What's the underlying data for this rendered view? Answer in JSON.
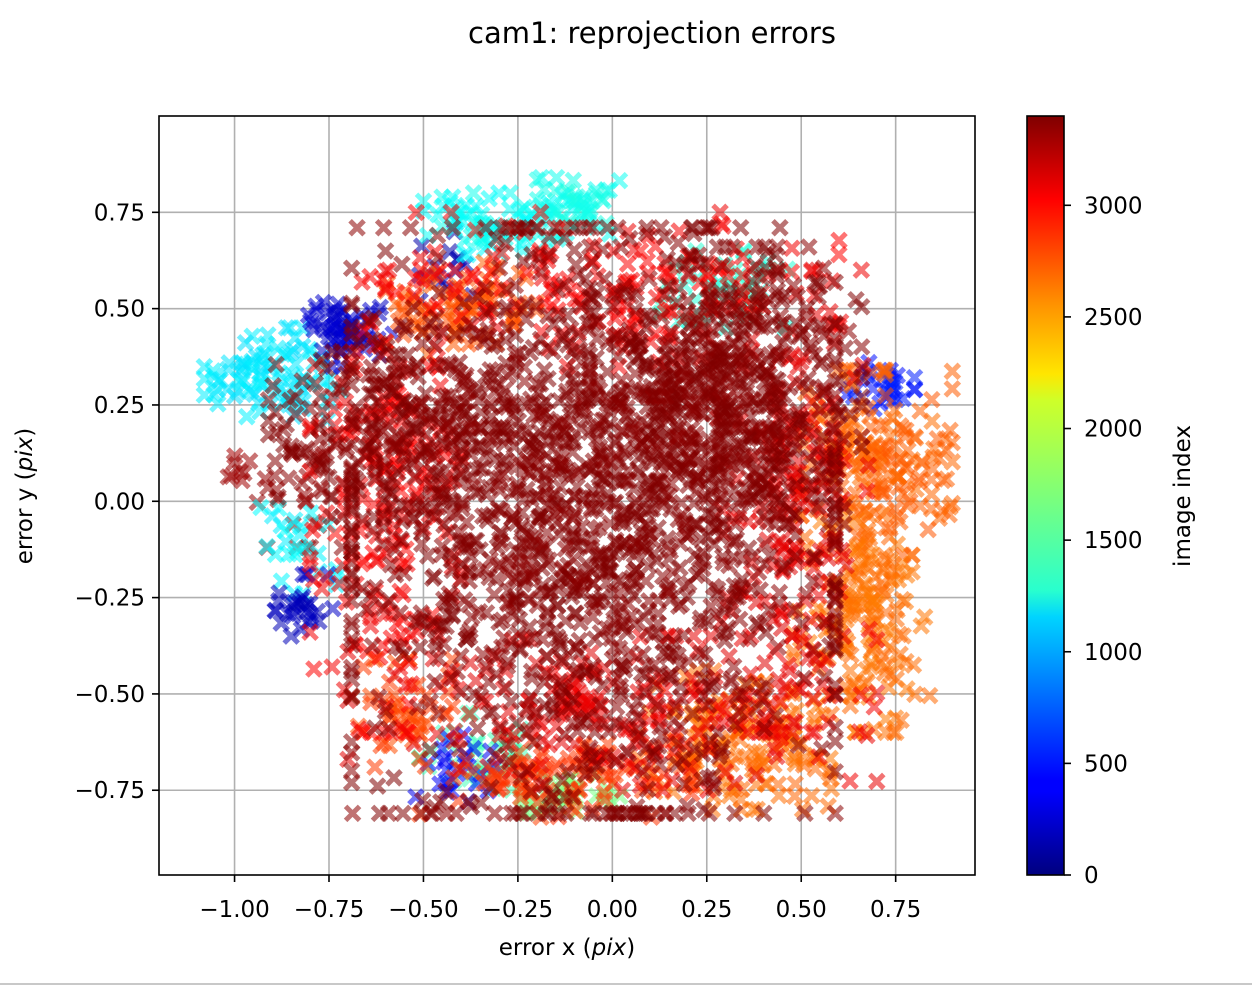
{
  "chart_data": {
    "type": "scatter",
    "title": "cam1: reprojection errors",
    "xlabel_prefix": "error x (",
    "xlabel_unit": "pix",
    "xlabel_suffix": ")",
    "ylabel_prefix": "error y (",
    "ylabel_unit": "pix",
    "ylabel_suffix": ")",
    "xlim": [
      -1.2,
      0.96
    ],
    "ylim": [
      -0.97,
      1.0
    ],
    "xticks": [
      -1.0,
      -0.75,
      -0.5,
      -0.25,
      0.0,
      0.25,
      0.5,
      0.75
    ],
    "xtick_labels": [
      "−1.00",
      "−0.75",
      "−0.50",
      "−0.25",
      "0.00",
      "0.25",
      "0.50",
      "0.75"
    ],
    "yticks": [
      0.75,
      0.5,
      0.25,
      0.0,
      -0.25,
      -0.5,
      -0.75
    ],
    "ytick_labels": [
      "0.75",
      "0.50",
      "0.25",
      "0.00",
      "−0.25",
      "−0.50",
      "−0.75"
    ],
    "grid": true,
    "marker": "x",
    "colormap": "jet",
    "colorbar": {
      "label": "image index",
      "range": [
        0,
        3400
      ],
      "ticks": [
        0,
        500,
        1000,
        1500,
        2000,
        2500,
        3000
      ],
      "tick_labels": [
        "0",
        "500",
        "1000",
        "1500",
        "2000",
        "2500",
        "3000"
      ]
    },
    "clusters": [
      {
        "center": [
          -0.9,
          0.33
        ],
        "spread": [
          0.09,
          0.06
        ],
        "count": 90,
        "index": 1200
      },
      {
        "center": [
          -1.0,
          0.1
        ],
        "spread": [
          0.02,
          0.03
        ],
        "count": 8,
        "index": 3300
      },
      {
        "center": [
          -0.7,
          0.45
        ],
        "spread": [
          0.06,
          0.05
        ],
        "count": 60,
        "index": 250
      },
      {
        "center": [
          -0.82,
          0.08
        ],
        "spread": [
          0.06,
          0.1
        ],
        "count": 40,
        "index": 3350
      },
      {
        "center": [
          -0.83,
          -0.12
        ],
        "spread": [
          0.05,
          0.06
        ],
        "count": 25,
        "index": 1250
      },
      {
        "center": [
          -0.82,
          -0.27
        ],
        "spread": [
          0.04,
          0.04
        ],
        "count": 30,
        "index": 200
      },
      {
        "center": [
          -0.43,
          0.62
        ],
        "spread": [
          0.04,
          0.05
        ],
        "count": 15,
        "index": 150
      },
      {
        "center": [
          -0.3,
          0.72
        ],
        "spread": [
          0.1,
          0.04
        ],
        "count": 70,
        "index": 1300
      },
      {
        "center": [
          -0.12,
          0.76
        ],
        "spread": [
          0.07,
          0.04
        ],
        "count": 50,
        "index": 1350
      },
      {
        "center": [
          0.3,
          0.55
        ],
        "spread": [
          0.1,
          0.05
        ],
        "count": 45,
        "index": 1400
      },
      {
        "center": [
          0.7,
          0.3
        ],
        "spread": [
          0.05,
          0.03
        ],
        "count": 30,
        "index": 500
      },
      {
        "center": [
          0.7,
          0.1
        ],
        "spread": [
          0.1,
          0.12
        ],
        "count": 180,
        "index": 2650
      },
      {
        "center": [
          0.66,
          -0.3
        ],
        "spread": [
          0.09,
          0.15
        ],
        "count": 160,
        "index": 2600
      },
      {
        "center": [
          0.35,
          -0.62
        ],
        "spread": [
          0.14,
          0.09
        ],
        "count": 160,
        "index": 2620
      },
      {
        "center": [
          -0.1,
          -0.77
        ],
        "spread": [
          0.07,
          0.03
        ],
        "count": 35,
        "index": 1700
      },
      {
        "center": [
          -0.35,
          -0.65
        ],
        "spread": [
          0.08,
          0.05
        ],
        "count": 40,
        "index": 1500
      },
      {
        "center": [
          -0.4,
          -0.68
        ],
        "spread": [
          0.06,
          0.05
        ],
        "count": 25,
        "index": 400
      },
      {
        "center": [
          -0.55,
          -0.55
        ],
        "spread": [
          0.07,
          0.07
        ],
        "count": 50,
        "index": 2750
      },
      {
        "center": [
          -0.15,
          -0.72
        ],
        "spread": [
          0.18,
          0.05
        ],
        "count": 100,
        "index": 2800
      },
      {
        "center": [
          -0.4,
          0.5
        ],
        "spread": [
          0.1,
          0.06
        ],
        "count": 80,
        "index": 2700
      },
      {
        "center": [
          -0.6,
          0.0
        ],
        "spread": [
          0.1,
          0.3
        ],
        "count": 200,
        "index": 3000
      },
      {
        "center": [
          0.48,
          0.0
        ],
        "spread": [
          0.1,
          0.3
        ],
        "count": 200,
        "index": 3050
      },
      {
        "center": [
          0.0,
          0.55
        ],
        "spread": [
          0.3,
          0.1
        ],
        "count": 160,
        "index": 3000
      },
      {
        "center": [
          0.0,
          -0.55
        ],
        "spread": [
          0.35,
          0.1
        ],
        "count": 200,
        "index": 3050
      },
      {
        "center": [
          -0.05,
          -0.05
        ],
        "spread": [
          0.32,
          0.38
        ],
        "count": 1500,
        "index": 3390
      },
      {
        "center": [
          0.3,
          0.3
        ],
        "spread": [
          0.18,
          0.18
        ],
        "count": 400,
        "index": 3390
      },
      {
        "center": [
          -0.55,
          0.2
        ],
        "spread": [
          0.18,
          0.12
        ],
        "count": 200,
        "index": 3390
      }
    ]
  }
}
